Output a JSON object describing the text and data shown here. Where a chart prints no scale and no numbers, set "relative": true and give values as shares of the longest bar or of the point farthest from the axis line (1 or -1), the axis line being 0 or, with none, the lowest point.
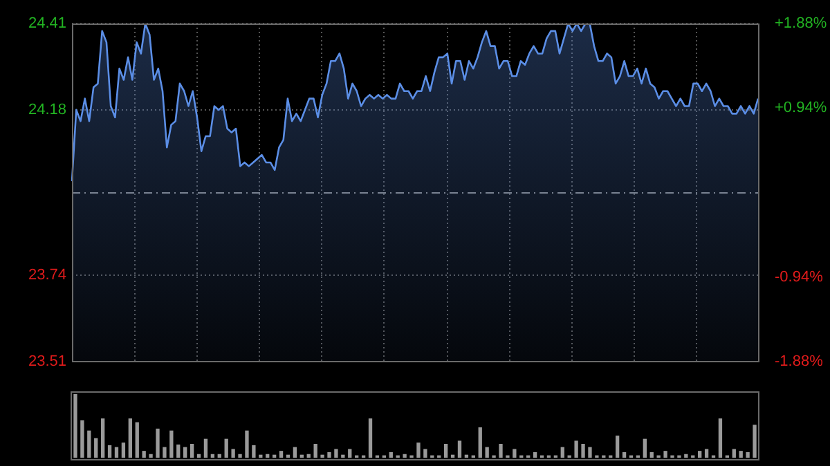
{
  "chart_data": [
    {
      "type": "area",
      "categories": [
        null,
        null,
        null,
        null,
        null,
        null,
        null,
        null,
        null,
        null,
        null,
        null,
        null,
        null,
        null,
        null,
        null,
        null,
        null,
        null,
        null,
        null,
        null,
        null,
        null,
        null,
        null,
        null,
        null,
        null,
        null,
        null,
        null,
        null,
        null,
        null,
        null,
        null,
        null,
        null,
        null,
        null,
        null,
        null,
        null,
        null,
        null,
        null,
        null,
        null,
        null,
        null,
        null,
        null,
        null,
        null,
        null,
        null,
        null,
        null,
        null,
        null,
        null,
        null,
        null,
        null,
        null,
        null,
        null,
        null,
        null,
        null,
        null,
        null,
        null,
        null,
        null,
        null,
        null,
        null,
        null,
        null,
        null,
        null,
        null,
        null,
        null,
        null,
        null,
        null,
        null,
        null,
        null,
        null,
        null,
        null,
        null,
        null,
        null,
        null,
        null,
        null,
        null,
        null,
        null,
        null,
        null,
        null,
        null,
        null,
        null,
        null,
        null,
        null,
        null,
        null,
        null,
        null,
        null,
        null,
        null,
        null,
        null,
        null,
        null,
        null,
        null,
        null,
        null,
        null,
        null,
        null,
        null,
        null,
        null,
        null,
        null,
        null,
        null,
        null,
        null,
        null,
        null,
        null,
        null,
        null,
        null,
        null,
        null,
        null,
        null,
        null,
        null,
        null,
        null,
        null,
        null,
        null,
        null,
        null
      ],
      "series": [
        {
          "color": "#5b8ee6",
          "values": [
            23.99,
            24.18,
            24.15,
            24.21,
            24.15,
            24.24,
            24.25,
            24.39,
            24.36,
            24.19,
            24.16,
            24.29,
            24.26,
            24.32,
            24.26,
            24.36,
            24.33,
            24.41,
            24.38,
            24.26,
            24.29,
            24.23,
            24.08,
            24.14,
            24.15,
            24.25,
            24.23,
            24.19,
            24.23,
            24.16,
            24.07,
            24.11,
            24.11,
            24.19,
            24.18,
            24.19,
            24.13,
            24.12,
            24.13,
            24.03,
            24.04,
            24.03,
            24.04,
            24.05,
            24.06,
            24.04,
            24.04,
            24.02,
            24.08,
            24.1,
            24.21,
            24.15,
            24.17,
            24.15,
            24.18,
            24.21,
            24.21,
            24.16,
            24.22,
            24.25,
            24.31,
            24.31,
            24.33,
            24.29,
            24.21,
            24.25,
            24.23,
            24.19,
            24.21,
            24.22,
            24.21,
            24.22,
            24.21,
            24.22,
            24.21,
            24.21,
            24.25,
            24.23,
            24.23,
            24.21,
            24.23,
            24.23,
            24.27,
            24.23,
            24.28,
            24.32,
            24.32,
            24.33,
            24.25,
            24.31,
            24.31,
            24.26,
            24.31,
            24.29,
            24.32,
            24.36,
            24.39,
            24.35,
            24.35,
            24.29,
            24.31,
            24.31,
            24.27,
            24.27,
            24.31,
            24.3,
            24.33,
            24.35,
            24.33,
            24.33,
            24.37,
            24.39,
            24.39,
            24.33,
            24.37,
            24.41,
            24.39,
            24.41,
            24.39,
            24.41,
            24.41,
            24.35,
            24.31,
            24.31,
            24.33,
            24.32,
            24.25,
            24.27,
            24.31,
            24.27,
            24.27,
            24.29,
            24.25,
            24.29,
            24.25,
            24.24,
            24.21,
            24.23,
            24.23,
            24.21,
            24.19,
            24.21,
            24.19,
            24.19,
            24.25,
            24.25,
            24.23,
            24.25,
            24.23,
            24.19,
            24.21,
            24.19,
            24.19,
            24.17,
            24.17,
            24.19,
            24.17,
            24.19,
            24.17,
            24.21
          ]
        }
      ],
      "ylim": [
        23.51,
        24.41
      ],
      "yticks": [
        23.51,
        23.74,
        24.18,
        24.41
      ],
      "y2lim": [
        -1.88,
        1.88
      ],
      "y2ticks": [
        {
          "value": -1.88,
          "label": "-1.88%"
        },
        {
          "value": -0.94,
          "label": "-0.94%"
        },
        {
          "value": 0.94,
          "label": "+0.94%"
        },
        {
          "value": 1.88,
          "label": "+1.88%"
        }
      ],
      "ref_lines": [
        {
          "axis": "y",
          "value": 23.96,
          "color": "#808080",
          "line_style": "dashed"
        }
      ],
      "tick_labels": "y",
      "grid": true,
      "marker": "none",
      "legend": false
    },
    {
      "type": "bar",
      "relative": true,
      "categories": [
        null,
        null,
        null,
        null,
        null,
        null,
        null,
        null,
        null,
        null,
        null,
        null,
        null,
        null,
        null,
        null,
        null,
        null,
        null,
        null,
        null,
        null,
        null,
        null,
        null,
        null,
        null,
        null,
        null,
        null,
        null,
        null,
        null,
        null,
        null,
        null,
        null,
        null,
        null,
        null,
        null,
        null,
        null,
        null,
        null,
        null,
        null,
        null,
        null,
        null,
        null,
        null,
        null,
        null,
        null,
        null,
        null,
        null,
        null,
        null,
        null,
        null,
        null,
        null,
        null,
        null,
        null,
        null,
        null,
        null,
        null,
        null,
        null,
        null,
        null,
        null,
        null,
        null,
        null,
        null,
        null,
        null,
        null,
        null,
        null,
        null,
        null,
        null,
        null,
        null,
        null,
        null,
        null,
        null,
        null,
        null,
        null,
        null,
        null,
        null
      ],
      "values": [
        1.0,
        0.58,
        0.42,
        0.3,
        0.61,
        0.19,
        0.16,
        0.23,
        0.61,
        0.55,
        0.1,
        0.05,
        0.45,
        0.16,
        0.42,
        0.2,
        0.16,
        0.21,
        0.05,
        0.29,
        0.05,
        0.05,
        0.29,
        0.13,
        0.05,
        0.42,
        0.19,
        0.04,
        0.05,
        0.04,
        0.1,
        0.04,
        0.16,
        0.04,
        0.05,
        0.21,
        0.04,
        0.08,
        0.13,
        0.04,
        0.13,
        0.03,
        0.03,
        0.61,
        0.03,
        0.03,
        0.08,
        0.03,
        0.05,
        0.03,
        0.23,
        0.13,
        0.03,
        0.03,
        0.21,
        0.04,
        0.26,
        0.04,
        0.03,
        0.47,
        0.16,
        0.03,
        0.21,
        0.03,
        0.13,
        0.03,
        0.03,
        0.08,
        0.03,
        0.03,
        0.03,
        0.16,
        0.03,
        0.26,
        0.21,
        0.16,
        0.03,
        0.03,
        0.03,
        0.34,
        0.08,
        0.03,
        0.03,
        0.29,
        0.08,
        0.03,
        0.1,
        0.03,
        0.03,
        0.05,
        0.03,
        0.1,
        0.13,
        0.03,
        0.61,
        0.03,
        0.13,
        0.1,
        0.08,
        0.51
      ],
      "color": "#9a9a9a",
      "legend": false
    }
  ]
}
